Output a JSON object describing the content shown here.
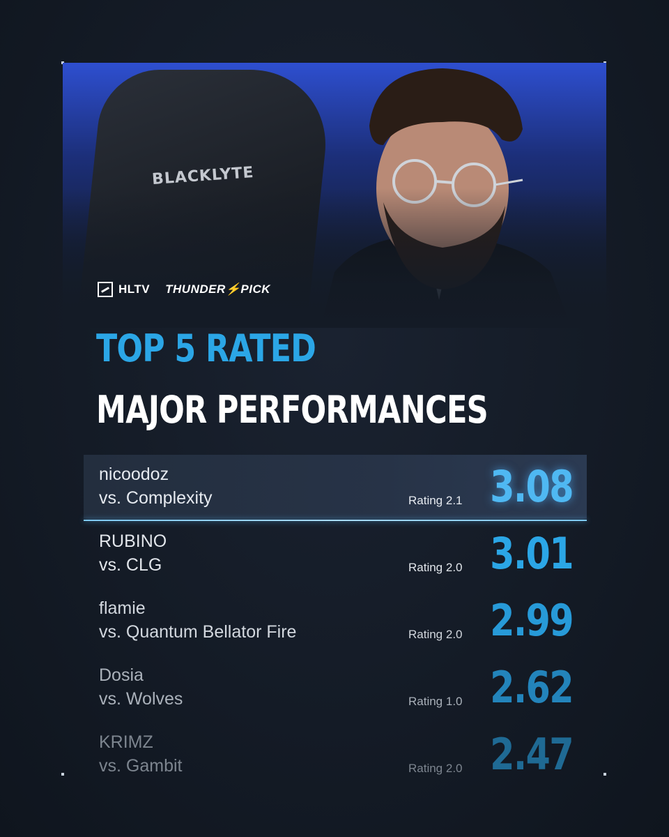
{
  "header": {
    "chair_brand": "BLACKLYTE",
    "logos": {
      "hltv": "HLTV",
      "partner_prefix": "THUNDER",
      "partner_suffix": "PICK"
    }
  },
  "title": {
    "line1": "TOP 5 RATED",
    "line2": "MAJOR PERFORMANCES"
  },
  "colors": {
    "accent": "#2ba6e6",
    "background": "#141b26",
    "text": "#ffffff"
  },
  "performances": [
    {
      "player": "nicoodoz",
      "opponent": "vs. Complexity",
      "version": "Rating 2.1",
      "value": "3.08"
    },
    {
      "player": "RUBINO",
      "opponent": "vs. CLG",
      "version": "Rating 2.0",
      "value": "3.01"
    },
    {
      "player": "flamie",
      "opponent": "vs. Quantum Bellator Fire",
      "version": "Rating 2.0",
      "value": "2.99"
    },
    {
      "player": "Dosia",
      "opponent": "vs. Wolves",
      "version": "Rating 1.0",
      "value": "2.62"
    },
    {
      "player": "KRIMZ",
      "opponent": "vs. Gambit",
      "version": "Rating 2.0",
      "value": "2.47"
    }
  ]
}
